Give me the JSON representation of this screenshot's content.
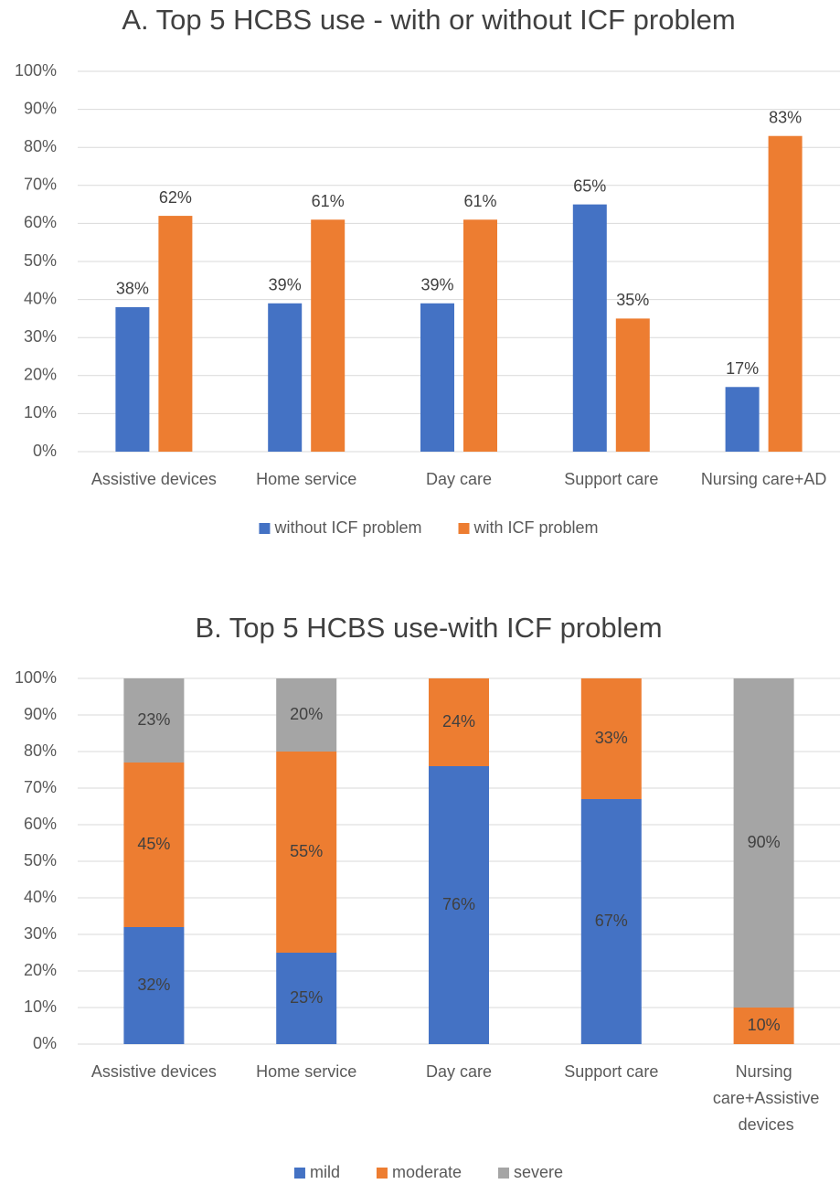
{
  "chart_data": [
    {
      "type": "grouped_bar",
      "title": "A. Top 5 HCBS use - with or without ICF problem",
      "categories": [
        "Assistive devices",
        "Home service",
        "Day care",
        "Support care",
        "Nursing care+AD"
      ],
      "series": [
        {
          "name": "without ICF problem",
          "color": "#4472c4",
          "values": [
            38,
            39,
            39,
            65,
            17
          ],
          "value_labels": [
            "38%",
            "39%",
            "39%",
            "65%",
            "17%"
          ]
        },
        {
          "name": "with ICF problem",
          "color": "#ed7d31",
          "values": [
            62,
            61,
            61,
            35,
            83
          ],
          "value_labels": [
            "62%",
            "61%",
            "61%",
            "35%",
            "83%"
          ]
        }
      ],
      "ylim": [
        0,
        100
      ],
      "yticks": [
        {
          "value": 0,
          "label": "0%"
        },
        {
          "value": 10,
          "label": "10%"
        },
        {
          "value": 20,
          "label": "20%"
        },
        {
          "value": 30,
          "label": "30%"
        },
        {
          "value": 40,
          "label": "40%"
        },
        {
          "value": 50,
          "label": "50%"
        },
        {
          "value": 60,
          "label": "60%"
        },
        {
          "value": 70,
          "label": "70%"
        },
        {
          "value": 80,
          "label": "80%"
        },
        {
          "value": 90,
          "label": "90%"
        },
        {
          "value": 100,
          "label": "100%"
        }
      ],
      "grid": true,
      "legend": "bottom"
    },
    {
      "type": "stacked_bar",
      "title": "B. Top 5 HCBS use-with ICF problem",
      "categories": [
        "Assistive devices",
        "Home service",
        "Day care",
        "Support care",
        "Nursing care+Assistive devices"
      ],
      "series": [
        {
          "name": "mild",
          "color": "#4472c4",
          "values": [
            32,
            25,
            76,
            67,
            null
          ],
          "value_labels": [
            "32%",
            "25%",
            "76%",
            "67%",
            null
          ]
        },
        {
          "name": "moderate",
          "color": "#ed7d31",
          "values": [
            45,
            55,
            24,
            33,
            10
          ],
          "value_labels": [
            "45%",
            "55%",
            "24%",
            "33%",
            "10%"
          ]
        },
        {
          "name": "severe",
          "color": "#a5a5a5",
          "values": [
            23,
            20,
            null,
            null,
            90
          ],
          "value_labels": [
            "23%",
            "20%",
            null,
            null,
            "90%"
          ]
        }
      ],
      "ylim": [
        0,
        100
      ],
      "yticks": [
        {
          "value": 0,
          "label": "0%"
        },
        {
          "value": 10,
          "label": "10%"
        },
        {
          "value": 20,
          "label": "20%"
        },
        {
          "value": 30,
          "label": "30%"
        },
        {
          "value": 40,
          "label": "40%"
        },
        {
          "value": 50,
          "label": "50%"
        },
        {
          "value": 60,
          "label": "60%"
        },
        {
          "value": 70,
          "label": "70%"
        },
        {
          "value": 80,
          "label": "80%"
        },
        {
          "value": 90,
          "label": "90%"
        },
        {
          "value": 100,
          "label": "100%"
        }
      ],
      "grid": true,
      "legend": "bottom"
    }
  ]
}
